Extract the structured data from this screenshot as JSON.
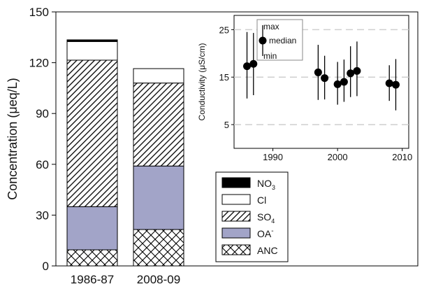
{
  "chart_data": [
    {
      "type": "bar",
      "stacked": true,
      "ylabel": "Concentration (μeq/L)",
      "ylim": [
        0,
        150
      ],
      "yticks": [
        0,
        30,
        60,
        90,
        120,
        150
      ],
      "categories": [
        "1986-87",
        "2008-09"
      ],
      "series": [
        {
          "name": "ANC",
          "sub": "",
          "sup": "",
          "pattern": "crosshatch",
          "values": [
            9.5,
            21.5
          ]
        },
        {
          "name": "OA",
          "sub": "",
          "sup": "-",
          "pattern": "fill-lavender",
          "values": [
            25.5,
            37.5
          ]
        },
        {
          "name": "SO",
          "sub": "4",
          "sup": "",
          "pattern": "diagonal",
          "values": [
            86.5,
            49
          ]
        },
        {
          "name": "Cl",
          "sub": "",
          "sup": "",
          "pattern": "white",
          "values": [
            11,
            8.5
          ]
        },
        {
          "name": "NO",
          "sub": "3",
          "sup": "",
          "pattern": "black",
          "values": [
            1,
            0
          ]
        }
      ],
      "legend_position": "bottom-center",
      "colors": {
        "oa_fill": "#a2a4c8",
        "nitrate": "#000000",
        "edge": "#000000",
        "grid": "#cfcfcf"
      }
    },
    {
      "type": "scatter",
      "inset": true,
      "position": "top-right",
      "ylabel": "Conductivity (μS/cm)",
      "xlim": [
        1984,
        2011
      ],
      "ylim": [
        0,
        28
      ],
      "xticks": [
        1990,
        2000,
        2010
      ],
      "yticks": [
        5,
        15,
        25
      ],
      "grid": "horizontal-dashed",
      "points": [
        {
          "x": 1986,
          "median": 17.3,
          "min": 10.5,
          "max": 24.5
        },
        {
          "x": 1987,
          "median": 17.8,
          "min": 11.2,
          "max": 24.3
        },
        {
          "x": 1997,
          "median": 16,
          "min": 10.2,
          "max": 21.8
        },
        {
          "x": 1998,
          "median": 14.8,
          "min": 10.3,
          "max": 19.5
        },
        {
          "x": 2000,
          "median": 13.5,
          "min": 9.2,
          "max": 18.2
        },
        {
          "x": 2001,
          "median": 14,
          "min": 9.8,
          "max": 18.7
        },
        {
          "x": 2002,
          "median": 15.8,
          "min": 10.8,
          "max": 21.5
        },
        {
          "x": 2003,
          "median": 16.3,
          "min": 11,
          "max": 22.5
        },
        {
          "x": 2008,
          "median": 13.7,
          "min": 10,
          "max": 17.5
        },
        {
          "x": 2009,
          "median": 13.4,
          "min": 8,
          "max": 18.8
        }
      ],
      "key": {
        "max": "max",
        "median": "median",
        "min": "min"
      }
    }
  ]
}
